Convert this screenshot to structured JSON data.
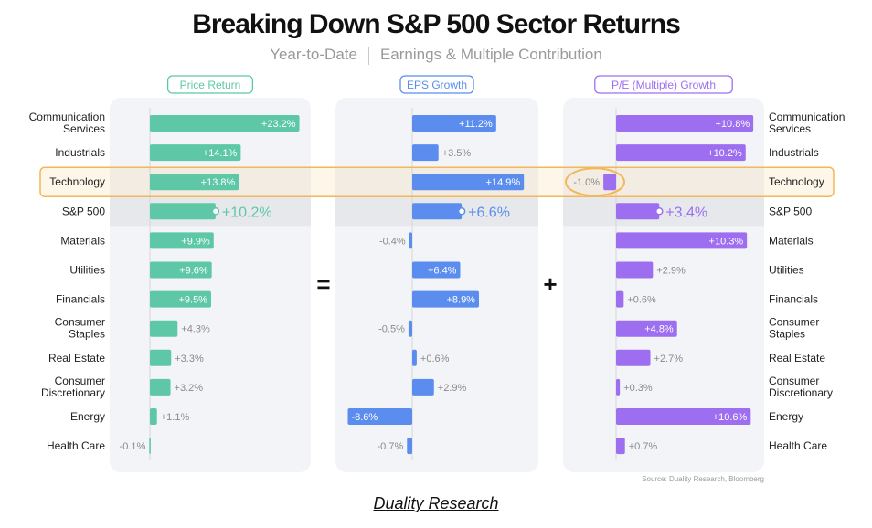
{
  "title": "Breaking Down S&P 500 Sector Returns",
  "subtitle": {
    "left": "Year-to-Date",
    "right": "Earnings & Multiple Contribution"
  },
  "operators": {
    "equals": "=",
    "plus": "+"
  },
  "source": "Source: Duality Research, Bloomberg",
  "credit": "Duality Research",
  "highlighted_row": "Technology",
  "colors": {
    "price": "#5ec8a6",
    "eps": "#5b8def",
    "pe": "#9d6ff0",
    "panel": "#f3f4f7",
    "sp_row": "#e7e8eb",
    "highlight": "#f2b857",
    "label": "#222222",
    "muted": "#8a8a8a"
  },
  "chart_data": {
    "type": "bar",
    "orientation": "horizontal",
    "categories": [
      "Communication Services",
      "Industrials",
      "Technology",
      "S&P 500",
      "Materials",
      "Utilities",
      "Financials",
      "Consumer Staples",
      "Real Estate",
      "Consumer Discretionary",
      "Energy",
      "Health Care"
    ],
    "series": [
      {
        "name": "Price Return",
        "values": [
          23.2,
          14.1,
          13.8,
          10.2,
          9.9,
          9.6,
          9.5,
          4.3,
          3.3,
          3.2,
          1.1,
          -0.1
        ],
        "labels": [
          "+23.2%",
          "+14.1%",
          "+13.8%",
          "+10.2%",
          "+9.9%",
          "+9.6%",
          "+9.5%",
          "+4.3%",
          "+3.3%",
          "+3.2%",
          "+1.1%",
          "-0.1%"
        ]
      },
      {
        "name": "EPS Growth",
        "values": [
          11.2,
          3.5,
          14.9,
          6.6,
          -0.4,
          6.4,
          8.9,
          -0.5,
          0.6,
          2.9,
          -8.6,
          -0.7
        ],
        "labels": [
          "+11.2%",
          "+3.5%",
          "+14.9%",
          "+6.6%",
          "-0.4%",
          "+6.4%",
          "+8.9%",
          "-0.5%",
          "+0.6%",
          "+2.9%",
          "-8.6%",
          "-0.7%"
        ]
      },
      {
        "name": "P/E (Multiple) Growth",
        "values": [
          10.8,
          10.2,
          -1.0,
          3.4,
          10.3,
          2.9,
          0.6,
          4.8,
          2.7,
          0.3,
          10.6,
          0.7
        ],
        "labels": [
          "+10.8%",
          "+10.2%",
          "-1.0%",
          "+3.4%",
          "+10.3%",
          "+2.9%",
          "+0.6%",
          "+4.8%",
          "+2.7%",
          "+0.3%",
          "+10.6%",
          "+0.7%"
        ]
      }
    ],
    "title": "Breaking Down S&P 500 Sector Returns",
    "xlabel": "",
    "ylabel": "",
    "legend": "column headers"
  }
}
